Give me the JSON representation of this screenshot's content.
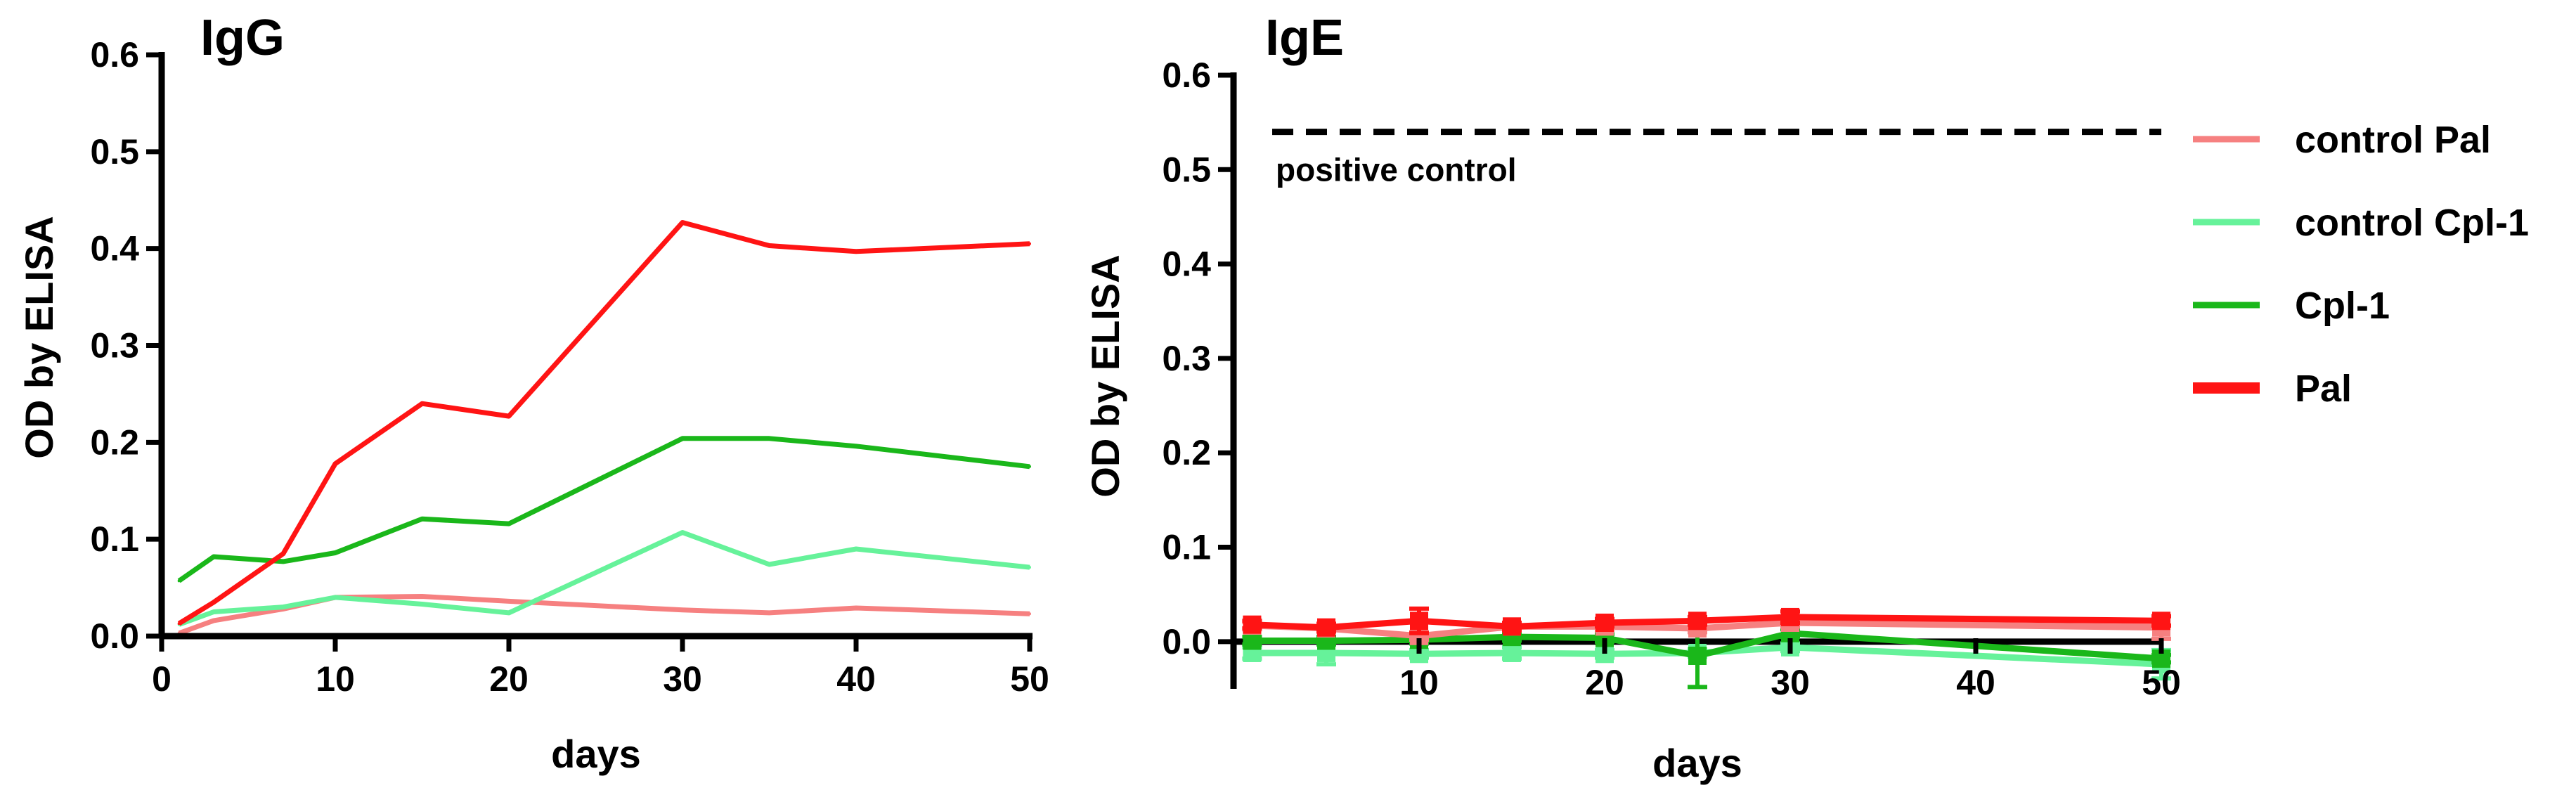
{
  "chart_data": [
    {
      "type": "line",
      "title": "IgG",
      "xlabel": "days",
      "ylabel": "OD by  ELISA",
      "xlim": [
        0,
        50
      ],
      "ylim": [
        0,
        0.6
      ],
      "xticks": [
        "0",
        "10",
        "20",
        "30",
        "40",
        "50"
      ],
      "yticks": [
        "0.0",
        "0.1",
        "0.2",
        "0.3",
        "0.4",
        "0.5",
        "0.6"
      ],
      "series": [
        {
          "name": "Pal",
          "color": "#ff1414",
          "x": [
            1,
            3,
            7,
            10,
            15,
            20,
            30,
            35,
            40,
            50
          ],
          "y": [
            0.013,
            0.035,
            0.085,
            0.178,
            0.24,
            0.227,
            0.427,
            0.403,
            0.397,
            0.405
          ]
        },
        {
          "name": "Cpl-1",
          "color": "#1ab71a",
          "x": [
            1,
            3,
            7,
            10,
            15,
            20,
            30,
            35,
            40,
            50
          ],
          "y": [
            0.057,
            0.082,
            0.077,
            0.086,
            0.121,
            0.116,
            0.204,
            0.204,
            0.196,
            0.175
          ]
        },
        {
          "name": "control Cpl-1",
          "color": "#66f29a",
          "x": [
            1,
            3,
            7,
            10,
            15,
            20,
            30,
            35,
            40,
            50
          ],
          "y": [
            0.012,
            0.025,
            0.03,
            0.04,
            0.033,
            0.024,
            0.107,
            0.074,
            0.09,
            0.071
          ]
        },
        {
          "name": "control Pal",
          "color": "#f68080",
          "x": [
            1,
            3,
            7,
            10,
            15,
            20,
            30,
            35,
            40,
            50
          ],
          "y": [
            0.003,
            0.016,
            0.028,
            0.04,
            0.041,
            0.036,
            0.027,
            0.024,
            0.029,
            0.023
          ]
        }
      ]
    },
    {
      "type": "line",
      "title": "IgE",
      "xlabel": "days",
      "ylabel": "OD by  ELISA",
      "xlim": [
        0,
        50
      ],
      "ylim": [
        -0.05,
        0.6
      ],
      "xticks": [
        "10",
        "20",
        "30",
        "40",
        "50"
      ],
      "yticks": [
        "0.0",
        "0.1",
        "0.2",
        "0.3",
        "0.4",
        "0.5",
        "0.6"
      ],
      "reference_line": {
        "y": 0.54,
        "label": "positive control",
        "color": "#000000"
      },
      "legend": {
        "position": "right",
        "entries": [
          {
            "label": "control Pal",
            "color": "#f68080"
          },
          {
            "label": "control Cpl-1",
            "color": "#66f29a"
          },
          {
            "label": "Cpl-1",
            "color": "#1ab71a"
          },
          {
            "label": "Pal",
            "color": "#ff1414"
          }
        ]
      },
      "series": [
        {
          "name": "Pal",
          "color": "#ff1414",
          "x": [
            1,
            5,
            10,
            15,
            20,
            25,
            30,
            50
          ],
          "y": [
            0.018,
            0.015,
            0.022,
            0.016,
            0.02,
            0.022,
            0.026,
            0.022
          ],
          "err": [
            0.004,
            0.004,
            0.013,
            0.004,
            0.004,
            0.004,
            0.006,
            0.005
          ]
        },
        {
          "name": "control Pal",
          "color": "#f68080",
          "x": [
            1,
            5,
            10,
            15,
            20,
            25,
            30,
            50
          ],
          "y": [
            0.017,
            0.014,
            0.006,
            0.016,
            0.016,
            0.014,
            0.02,
            0.015
          ],
          "err": [
            0.004,
            0.004,
            0.004,
            0.004,
            0.004,
            0.004,
            0.004,
            0.012
          ]
        },
        {
          "name": "Cpl-1",
          "color": "#1ab71a",
          "x": [
            1,
            5,
            10,
            15,
            20,
            25,
            30,
            50
          ],
          "y": [
            0.001,
            0.001,
            0.002,
            0.005,
            0.004,
            -0.015,
            0.009,
            -0.018
          ],
          "err": [
            0.004,
            0.004,
            0.004,
            0.004,
            0.004,
            0.033,
            0.004,
            0.004
          ]
        },
        {
          "name": "control Cpl-1",
          "color": "#66f29a",
          "x": [
            1,
            5,
            10,
            15,
            20,
            25,
            30,
            50
          ],
          "y": [
            -0.012,
            -0.012,
            -0.013,
            -0.012,
            -0.013,
            -0.012,
            -0.006,
            -0.024
          ],
          "err": [
            0.006,
            0.012,
            0.004,
            0.006,
            0.004,
            0.004,
            0.004,
            0.015
          ]
        }
      ]
    }
  ]
}
